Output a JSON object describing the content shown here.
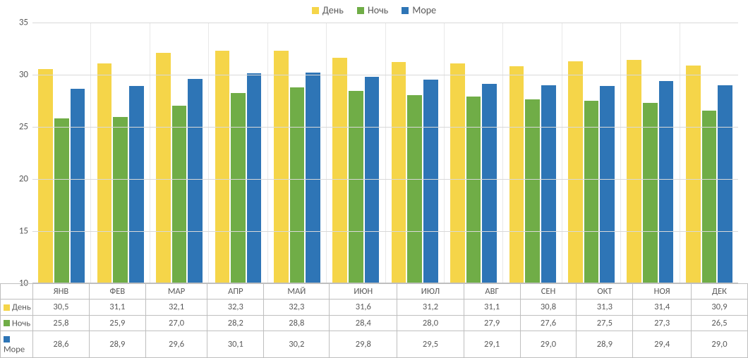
{
  "chart": {
    "type": "bar",
    "background_color": "#ffffff",
    "grid_color": "#d9d9d9",
    "border_color": "#bfbfbf",
    "text_color": "#595959",
    "font_family": "Calibri, Arial, sans-serif",
    "label_fontsize": 13,
    "legend_fontsize": 14,
    "table_fontsize": 12.5,
    "y_axis": {
      "min": 10,
      "max": 35,
      "step": 5
    },
    "categories": [
      "ЯНВ",
      "ФЕВ",
      "МАР",
      "АПР",
      "МАЙ",
      "ИЮН",
      "ИЮЛ",
      "АВГ",
      "СЕН",
      "ОКТ",
      "НОЯ",
      "ДЕК"
    ],
    "series": [
      {
        "name": "День",
        "color": "#f5d549",
        "values": [
          30.5,
          31.1,
          32.1,
          32.3,
          32.3,
          31.6,
          31.2,
          31.1,
          30.8,
          31.3,
          31.4,
          30.9
        ],
        "display": [
          "30,5",
          "31,1",
          "32,1",
          "32,3",
          "32,3",
          "31,6",
          "31,2",
          "31,1",
          "30,8",
          "31,3",
          "31,4",
          "30,9"
        ]
      },
      {
        "name": "Ночь",
        "color": "#70ad47",
        "values": [
          25.8,
          25.9,
          27.0,
          28.2,
          28.8,
          28.4,
          28.0,
          27.9,
          27.6,
          27.5,
          27.3,
          26.5
        ],
        "display": [
          "25,8",
          "25,9",
          "27,0",
          "28,2",
          "28,8",
          "28,4",
          "28,0",
          "27,9",
          "27,6",
          "27,5",
          "27,3",
          "26,5"
        ]
      },
      {
        "name": "Море",
        "color": "#2e75b6",
        "values": [
          28.6,
          28.9,
          29.6,
          30.1,
          30.2,
          29.8,
          29.5,
          29.1,
          29.0,
          28.9,
          29.4,
          29.0
        ],
        "display": [
          "28,6",
          "28,9",
          "29,6",
          "30,1",
          "30,2",
          "29,8",
          "29,5",
          "29,1",
          "29,0",
          "28,9",
          "29,4",
          "29,0"
        ]
      }
    ]
  }
}
